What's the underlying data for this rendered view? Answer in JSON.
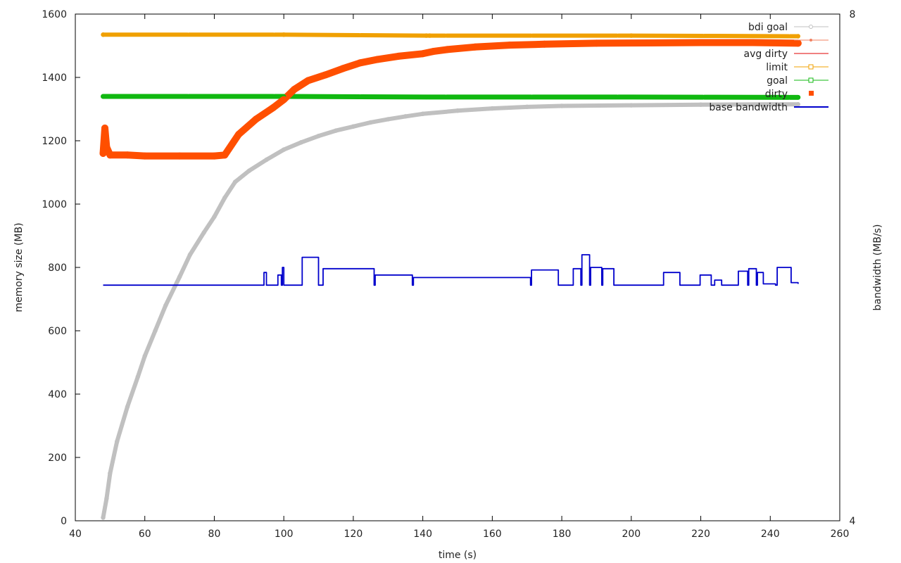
{
  "chart_data": {
    "type": "line",
    "xlabel": "time (s)",
    "ylabel": "memory size (MB)",
    "y2label": "bandwidth (MB/s)",
    "xlim": [
      40,
      260
    ],
    "ylim": [
      0,
      1600
    ],
    "y2lim": [
      4,
      8
    ],
    "xticks": [
      40,
      60,
      80,
      100,
      120,
      140,
      160,
      180,
      200,
      220,
      240,
      260
    ],
    "yticks": [
      0,
      200,
      400,
      600,
      800,
      1000,
      1200,
      1400,
      1600
    ],
    "y2ticks": [
      4,
      8
    ],
    "grid": false,
    "legend_position": "top-right",
    "legend": [
      "bdi goal",
      "",
      "avg dirty",
      "limit",
      "goal",
      "dirty",
      "base bandwidth"
    ],
    "series": [
      {
        "name": "limit",
        "color": "#f0a000",
        "axis": "y",
        "x": [
          48,
          100,
          141,
          142,
          200,
          248
        ],
        "y": [
          1535,
          1535,
          1532,
          1532,
          1532,
          1530
        ]
      },
      {
        "name": "goal",
        "color": "#10b810",
        "axis": "y",
        "x": [
          48,
          100,
          141,
          142,
          200,
          248
        ],
        "y": [
          1340,
          1340,
          1338,
          1338,
          1338,
          1337
        ]
      },
      {
        "name": "dirty",
        "color": "#ff4f00",
        "axis": "y",
        "x": [
          48,
          48.5,
          49,
          50,
          55,
          60,
          70,
          80,
          83,
          87,
          92,
          97,
          100,
          103,
          107,
          112,
          117,
          122,
          127,
          133,
          140,
          143,
          147,
          155,
          165,
          175,
          190,
          205,
          220,
          235,
          248
        ],
        "y": [
          1160,
          1240,
          1180,
          1155,
          1155,
          1152,
          1152,
          1152,
          1155,
          1220,
          1268,
          1305,
          1330,
          1362,
          1390,
          1408,
          1428,
          1446,
          1457,
          1467,
          1475,
          1482,
          1488,
          1496,
          1502,
          1505,
          1508,
          1509,
          1510,
          1510,
          1508
        ]
      },
      {
        "name": "bdi goal",
        "color": "#c0c0c0",
        "axis": "y",
        "x": [
          48,
          49,
          50,
          52,
          55,
          58,
          60,
          63,
          66,
          70,
          73,
          77,
          80,
          83,
          86,
          90,
          95,
          100,
          105,
          110,
          115,
          120,
          125,
          130,
          135,
          140,
          150,
          160,
          170,
          180,
          200,
          220,
          240,
          248
        ],
        "y": [
          10,
          70,
          150,
          250,
          360,
          455,
          520,
          600,
          680,
          770,
          840,
          910,
          960,
          1020,
          1070,
          1105,
          1140,
          1172,
          1195,
          1215,
          1232,
          1245,
          1258,
          1268,
          1277,
          1285,
          1295,
          1302,
          1307,
          1310,
          1312,
          1314,
          1315,
          1315
        ]
      },
      {
        "name": "base bandwidth",
        "color": "#0000cc",
        "axis": "y2",
        "x": [
          48,
          93,
          94,
          94.3,
          95,
          98,
          98.3,
          99.3,
          99.6,
          100,
          105,
          105.3,
          110,
          111,
          111.3,
          126,
          126.3,
          137,
          137.3,
          171,
          171.3,
          179,
          183,
          183.3,
          185.5,
          185.8,
          188,
          188.3,
          191.5,
          191.8,
          195,
          207,
          209,
          209.3,
          214,
          219.5,
          219.8,
          223,
          224,
          226,
          230.5,
          230.8,
          233.5,
          233.8,
          236,
          236.3,
          238,
          240,
          241.5,
          242,
          244,
          246,
          248
        ],
        "y": [
          5.86,
          5.86,
          5.86,
          5.96,
          5.86,
          5.86,
          5.94,
          5.86,
          6.0,
          5.86,
          5.86,
          6.08,
          5.86,
          5.86,
          5.99,
          5.86,
          5.94,
          5.86,
          5.92,
          5.86,
          5.98,
          5.86,
          5.86,
          5.99,
          5.86,
          6.1,
          5.86,
          6.0,
          5.86,
          5.99,
          5.86,
          5.86,
          5.86,
          5.96,
          5.86,
          5.86,
          5.94,
          5.86,
          5.9,
          5.86,
          5.86,
          5.97,
          5.86,
          5.99,
          5.86,
          5.96,
          5.87,
          5.87,
          5.86,
          6.0,
          6.0,
          5.88,
          5.87
        ]
      }
    ]
  }
}
